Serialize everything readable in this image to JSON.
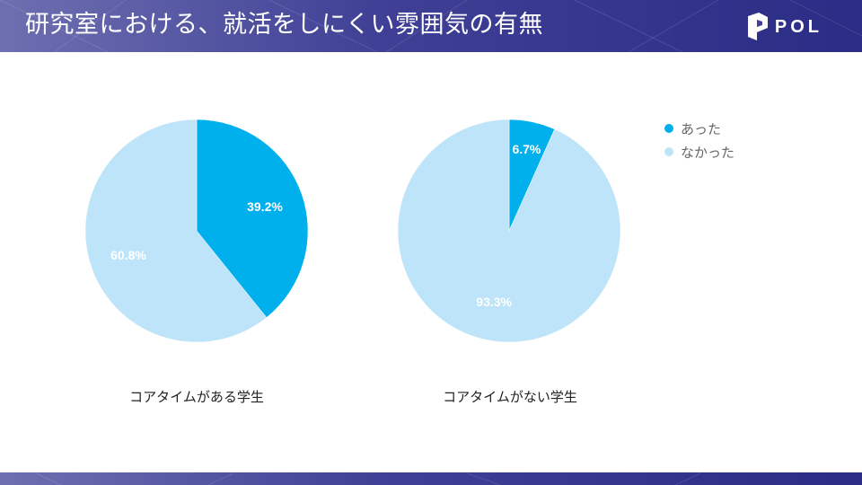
{
  "header": {
    "title": "研究室における、就活をしにくい雰囲気の有無",
    "logo_text": "POL"
  },
  "colors": {
    "yes": "#00b0ec",
    "no": "#bde4f8",
    "banner": "#3e3f95"
  },
  "chart_data": [
    {
      "type": "pie",
      "title": "コアタイムがある学生",
      "slices": [
        {
          "label": "あった",
          "value": 39.2,
          "display": "39.2%"
        },
        {
          "label": "なかった",
          "value": 60.8,
          "display": "60.8%"
        }
      ]
    },
    {
      "type": "pie",
      "title": "コアタイムがない学生",
      "slices": [
        {
          "label": "あった",
          "value": 6.7,
          "display": "6.7%"
        },
        {
          "label": "なかった",
          "value": 93.3,
          "display": "93.3%"
        }
      ]
    }
  ],
  "legend": {
    "position": "top-right",
    "items": [
      "あった",
      "なかった"
    ]
  }
}
